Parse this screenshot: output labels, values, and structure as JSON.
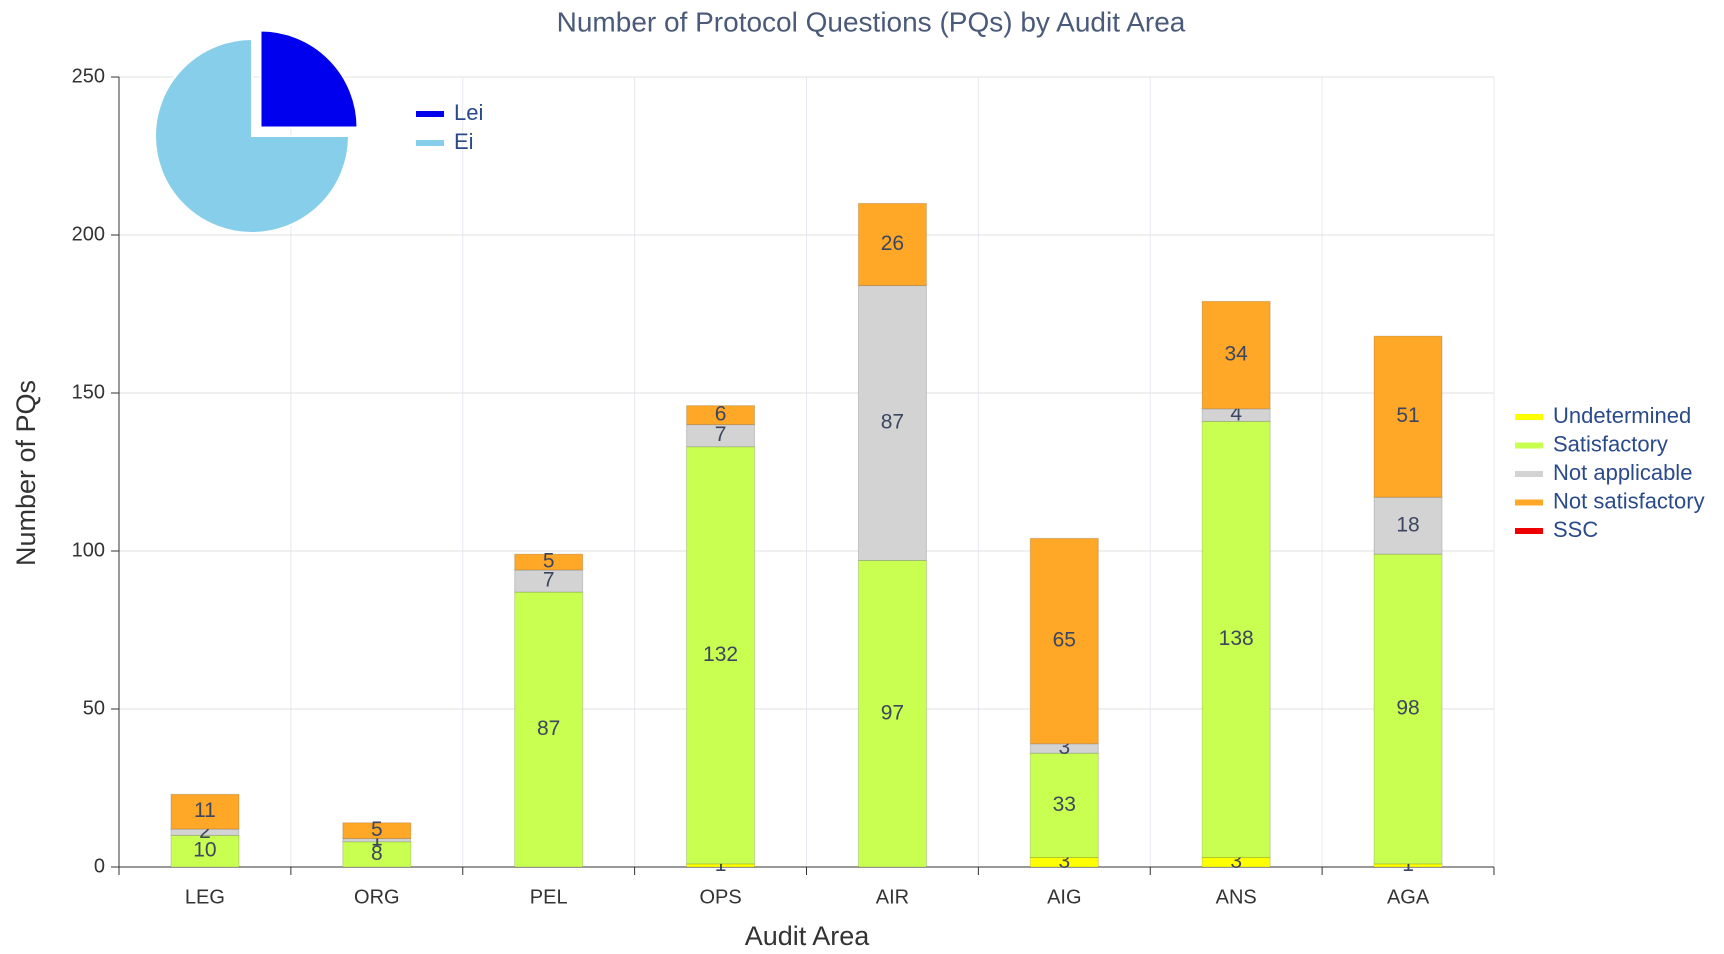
{
  "chart_data": [
    {
      "type": "bar",
      "stacked": true,
      "title": "Number of Protocol Questions (PQs) by Audit Area",
      "x_label": "Audit Area",
      "y_label": "Number of PQs",
      "categories": [
        "LEG",
        "ORG",
        "PEL",
        "OPS",
        "AIR",
        "AIG",
        "ANS",
        "AGA"
      ],
      "series": [
        {
          "name": "Undetermined",
          "color": "#ffff00",
          "values": [
            null,
            null,
            null,
            1,
            null,
            3,
            3,
            1
          ]
        },
        {
          "name": "Satisfactory",
          "color": "#c8ff50",
          "values": [
            10,
            8,
            87,
            132,
            97,
            33,
            138,
            98
          ]
        },
        {
          "name": "Not applicable",
          "color": "#d3d3d3",
          "values": [
            2,
            1,
            7,
            7,
            87,
            3,
            4,
            18
          ]
        },
        {
          "name": "Not satisfactory",
          "color": "#ffa726",
          "values": [
            11,
            5,
            5,
            6,
            26,
            65,
            34,
            51
          ]
        },
        {
          "name": "SSC",
          "color": "#ee0000",
          "values": [
            null,
            null,
            null,
            null,
            null,
            null,
            null,
            null
          ]
        }
      ],
      "ylim": [
        0,
        250
      ],
      "yticks": [
        0,
        50,
        100,
        150,
        200,
        250
      ],
      "grid": true,
      "legend": "right"
    },
    {
      "type": "pie",
      "categories": [
        "Lei",
        "Ei"
      ],
      "values": [
        25,
        75
      ],
      "colors": [
        "#0000ee",
        "#87ceeb"
      ],
      "exploded": [
        true,
        false
      ]
    }
  ]
}
